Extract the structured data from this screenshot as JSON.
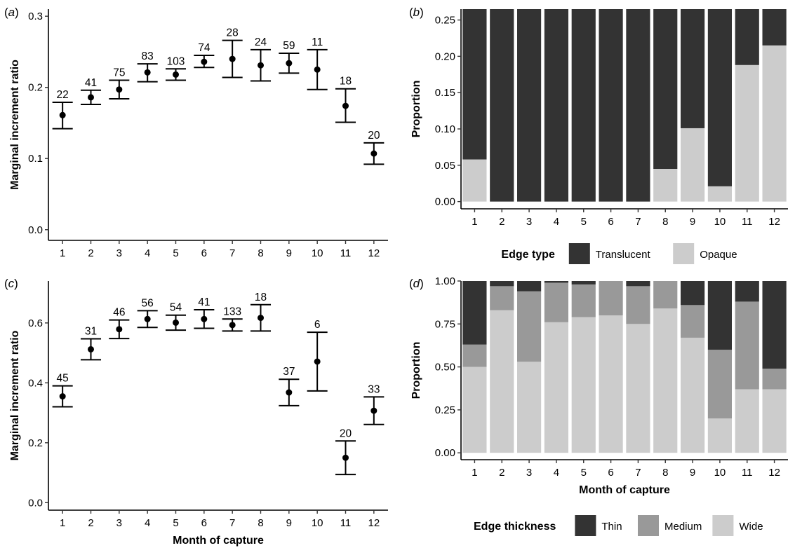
{
  "colors": {
    "translucent": "#333333",
    "opaque": "#cccccc",
    "thin": "#333333",
    "medium": "#999999",
    "wide": "#cccccc"
  },
  "chart_data": [
    {
      "id": "a",
      "type": "scatter",
      "panel_label_letter": "a",
      "title": "",
      "xlabel": "",
      "ylabel": "Marginal increment ratio",
      "ylim": [
        -0.015,
        0.31
      ],
      "yticks": [
        "0.0",
        "0.1",
        "0.2",
        "0.3"
      ],
      "categories": [
        "1",
        "2",
        "3",
        "4",
        "5",
        "6",
        "7",
        "8",
        "9",
        "10",
        "11",
        "12"
      ],
      "mean": [
        0.161,
        0.186,
        0.197,
        0.221,
        0.218,
        0.236,
        0.24,
        0.231,
        0.234,
        0.225,
        0.174,
        0.107
      ],
      "lower": [
        0.142,
        0.176,
        0.184,
        0.208,
        0.21,
        0.228,
        0.214,
        0.209,
        0.22,
        0.197,
        0.151,
        0.092
      ],
      "upper": [
        0.179,
        0.196,
        0.21,
        0.233,
        0.226,
        0.245,
        0.266,
        0.253,
        0.248,
        0.253,
        0.198,
        0.122
      ],
      "n": [
        "22",
        "41",
        "75",
        "83",
        "103",
        "74",
        "28",
        "24",
        "59",
        "11",
        "18",
        "20"
      ]
    },
    {
      "id": "b",
      "type": "bar",
      "stacked": true,
      "panel_label_letter": "b",
      "title": "",
      "xlabel": "",
      "ylabel": "Proportion",
      "ylim": [
        -0.01,
        0.265
      ],
      "yticks": [
        "0.00",
        "0.05",
        "0.10",
        "0.15",
        "0.20",
        "0.25"
      ],
      "categories": [
        "1",
        "2",
        "3",
        "4",
        "5",
        "6",
        "7",
        "8",
        "9",
        "10",
        "11",
        "12"
      ],
      "bar_top": 0.265,
      "series": [
        {
          "name": "Opaque",
          "values": [
            0.058,
            0,
            0,
            0,
            0,
            0,
            0,
            0.045,
            0.101,
            0.021,
            0.188,
            0.215
          ]
        },
        {
          "name": "Translucent",
          "values": [
            0.207,
            0.265,
            0.265,
            0.265,
            0.265,
            0.265,
            0.265,
            0.22,
            0.164,
            0.244,
            0.077,
            0.05
          ]
        }
      ],
      "legend": {
        "title": "Edge type",
        "position": "bottom",
        "items": [
          "Translucent",
          "Opaque"
        ]
      }
    },
    {
      "id": "c",
      "type": "scatter",
      "panel_label_letter": "c",
      "title": "",
      "xlabel": "Month of capture",
      "ylabel": "Marginal increment ratio",
      "ylim": [
        -0.025,
        0.74
      ],
      "yticks": [
        "0.0",
        "0.2",
        "0.4",
        "0.6"
      ],
      "categories": [
        "1",
        "2",
        "3",
        "4",
        "5",
        "6",
        "7",
        "8",
        "9",
        "10",
        "11",
        "12"
      ],
      "mean": [
        0.355,
        0.512,
        0.579,
        0.613,
        0.601,
        0.613,
        0.593,
        0.617,
        0.368,
        0.471,
        0.15,
        0.307
      ],
      "lower": [
        0.32,
        0.477,
        0.548,
        0.585,
        0.576,
        0.582,
        0.573,
        0.573,
        0.324,
        0.373,
        0.094,
        0.261
      ],
      "upper": [
        0.39,
        0.547,
        0.61,
        0.641,
        0.626,
        0.644,
        0.613,
        0.661,
        0.412,
        0.569,
        0.206,
        0.353
      ],
      "n": [
        "45",
        "31",
        "46",
        "56",
        "54",
        "41",
        "133",
        "18",
        "37",
        "6",
        "20",
        "33"
      ]
    },
    {
      "id": "d",
      "type": "bar",
      "stacked": true,
      "panel_label_letter": "d",
      "title": "",
      "xlabel": "Month of capture",
      "ylabel": "Proportion",
      "ylim": [
        -0.04,
        1.0
      ],
      "yticks": [
        "0.00",
        "0.25",
        "0.50",
        "0.75",
        "1.00"
      ],
      "categories": [
        "1",
        "2",
        "3",
        "4",
        "5",
        "6",
        "7",
        "8",
        "9",
        "10",
        "11",
        "12"
      ],
      "bar_top": 1.0,
      "series": [
        {
          "name": "Wide",
          "values": [
            0.5,
            0.83,
            0.53,
            0.76,
            0.79,
            0.8,
            0.75,
            0.84,
            0.67,
            0.2,
            0.37,
            0.37
          ]
        },
        {
          "name": "Medium",
          "values": [
            0.13,
            0.14,
            0.41,
            0.23,
            0.19,
            0.2,
            0.22,
            0.16,
            0.19,
            0.4,
            0.51,
            0.12
          ]
        },
        {
          "name": "Thin",
          "values": [
            0.37,
            0.03,
            0.06,
            0.01,
            0.02,
            0.0,
            0.03,
            0.0,
            0.14,
            0.4,
            0.12,
            0.51
          ]
        }
      ],
      "legend": {
        "title": "Edge thickness",
        "position": "bottom",
        "items": [
          "Thin",
          "Medium",
          "Wide"
        ]
      }
    }
  ]
}
